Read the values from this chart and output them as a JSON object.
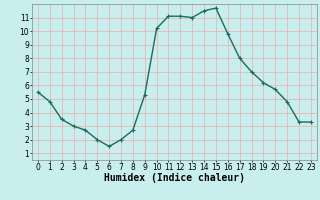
{
  "x": [
    0,
    1,
    2,
    3,
    4,
    5,
    6,
    7,
    8,
    9,
    10,
    11,
    12,
    13,
    14,
    15,
    16,
    17,
    18,
    19,
    20,
    21,
    22,
    23
  ],
  "y": [
    5.5,
    4.8,
    3.5,
    3.0,
    2.7,
    2.0,
    1.5,
    2.0,
    2.7,
    5.3,
    10.2,
    11.1,
    11.1,
    11.0,
    11.5,
    11.7,
    9.8,
    8.0,
    7.0,
    6.2,
    5.7,
    4.8,
    3.3,
    3.3
  ],
  "line_color": "#1a6b5e",
  "marker": "+",
  "marker_size": 3,
  "marker_lw": 0.8,
  "bg_color": "#c8eeee",
  "grid_color": "#e8b8b8",
  "xlabel": "Humidex (Indice chaleur)",
  "xlim": [
    -0.5,
    23.5
  ],
  "ylim": [
    0.5,
    12.0
  ],
  "yticks": [
    1,
    2,
    3,
    4,
    5,
    6,
    7,
    8,
    9,
    10,
    11
  ],
  "xticks": [
    0,
    1,
    2,
    3,
    4,
    5,
    6,
    7,
    8,
    9,
    10,
    11,
    12,
    13,
    14,
    15,
    16,
    17,
    18,
    19,
    20,
    21,
    22,
    23
  ],
  "xlabel_fontsize": 7,
  "tick_fontsize": 5.5,
  "line_width": 1.0,
  "spine_color": "#888888"
}
